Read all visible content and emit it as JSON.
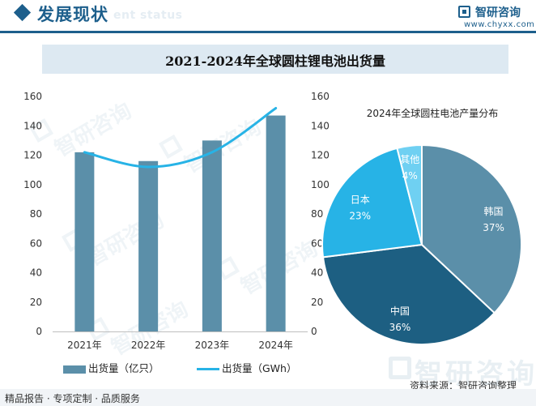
{
  "header": {
    "section_title": "发展现状",
    "section_title_en": "ent status",
    "logo_name": "智研咨询",
    "logo_url": "www.chyxx.com"
  },
  "banner_title": "2021-2024年全球圆柱锂电池出货量",
  "colors": {
    "bar": "#5b8fa9",
    "line": "#27b3e6",
    "brand": "#1d5f8c",
    "pie_korea": "#5b8fa9",
    "pie_china": "#1d5f82",
    "pie_japan": "#27b3e6",
    "pie_other": "#6fd0f2"
  },
  "chart_data": [
    {
      "type": "bar",
      "title": "",
      "categories": [
        "2021年",
        "2022年",
        "2023年",
        "2024年"
      ],
      "series": [
        {
          "name": "出货量（亿只）",
          "type": "bar",
          "axis": "left",
          "values": [
            122,
            116,
            130,
            147
          ]
        },
        {
          "name": "出货量（GWh）",
          "type": "line",
          "axis": "right",
          "values": [
            122,
            112,
            122,
            152
          ]
        }
      ],
      "ylim": [
        0,
        160
      ],
      "y2lim": [
        0,
        160
      ],
      "yticks": [
        0,
        20,
        40,
        60,
        80,
        100,
        120,
        140,
        160
      ],
      "grid": false,
      "legend": "bottom"
    },
    {
      "type": "pie",
      "title": "2024年全球圆柱电池产量分布",
      "slices": [
        {
          "label": "韩国",
          "value": 37,
          "text": "37%"
        },
        {
          "label": "中国",
          "value": 36,
          "text": "36%"
        },
        {
          "label": "日本",
          "value": 23,
          "text": "23%"
        },
        {
          "label": "其他",
          "value": 4,
          "text": "4%"
        }
      ]
    }
  ],
  "footer": {
    "left": "精品报告 · 专项定制 · 品质服务",
    "source": "资料来源：智研咨询整理"
  },
  "watermark": {
    "text": "智研咨询"
  }
}
